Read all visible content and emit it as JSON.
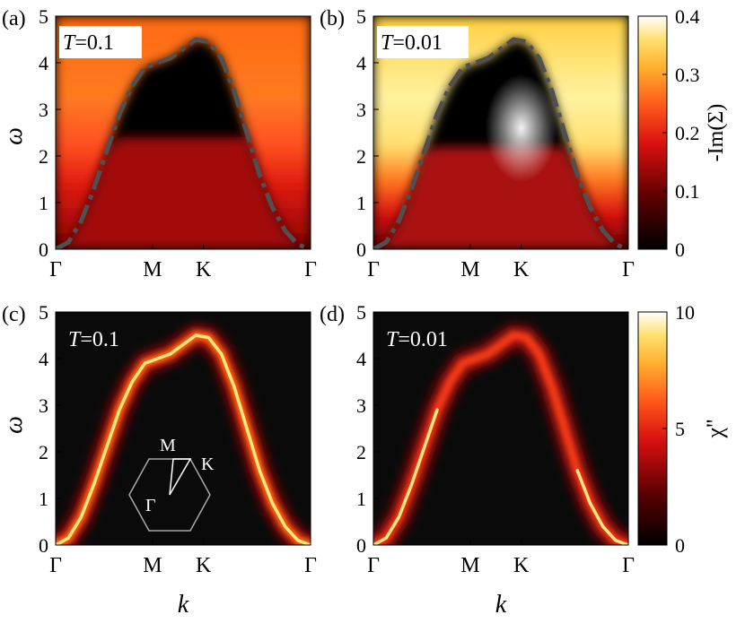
{
  "figure": {
    "colorbars": [
      {
        "label": "-Im(Σ)",
        "ticks": [
          "0",
          "0.1",
          "0.2",
          "0.3",
          "0.4"
        ],
        "tick_values": [
          0,
          0.1,
          0.2,
          0.3,
          0.4
        ],
        "range": [
          0,
          0.4
        ]
      },
      {
        "label": "χ''",
        "ticks": [
          "0",
          "5",
          "10"
        ],
        "tick_values": [
          0,
          5,
          10
        ],
        "range": [
          0,
          10
        ]
      }
    ],
    "inset": {
      "labels": {
        "gamma": "Γ",
        "m": "M",
        "k": "K"
      }
    }
  },
  "chart_data": [
    {
      "type": "heatmap",
      "panel_label": "(a)",
      "temperature_label": "T=0.1",
      "t_symbol": "T",
      "t_value": "=0.1",
      "xlabel": "",
      "ylabel": "ω",
      "ylim": [
        0,
        5
      ],
      "x_tick_labels": [
        "Γ",
        "M",
        "K",
        "Γ"
      ],
      "y_ticks": [
        "0",
        "1",
        "2",
        "3",
        "4",
        "5"
      ],
      "colorbar": 0,
      "overlay": "magnon dispersion (dashed)"
    },
    {
      "type": "heatmap",
      "panel_label": "(b)",
      "temperature_label": "T=0.01",
      "t_symbol": "T",
      "t_value": "=0.01",
      "xlabel": "",
      "ylabel": "",
      "ylim": [
        0,
        5
      ],
      "x_tick_labels": [
        "Γ",
        "M",
        "K",
        "Γ"
      ],
      "y_ticks": [
        "0",
        "1",
        "2",
        "3",
        "4",
        "5"
      ],
      "colorbar": 0,
      "overlay": "magnon dispersion (dashed)"
    },
    {
      "type": "heatmap",
      "panel_label": "(c)",
      "temperature_label": "T=0.1",
      "t_symbol": "T",
      "t_value": "=0.1",
      "xlabel": "k",
      "ylabel": "ω",
      "ylim": [
        0,
        5
      ],
      "x_tick_labels": [
        "Γ",
        "M",
        "K",
        "Γ"
      ],
      "y_ticks": [
        "0",
        "1",
        "2",
        "3",
        "4",
        "5"
      ],
      "colorbar": 1
    },
    {
      "type": "heatmap",
      "panel_label": "(d)",
      "temperature_label": "T=0.01",
      "t_symbol": "T",
      "t_value": "=0.01",
      "xlabel": "k",
      "ylabel": "",
      "ylim": [
        0,
        5
      ],
      "x_tick_labels": [
        "Γ",
        "M",
        "K",
        "Γ"
      ],
      "y_ticks": [
        "0",
        "1",
        "2",
        "3",
        "4",
        "5"
      ],
      "colorbar": 1
    }
  ],
  "dispersion": {
    "k": [
      0,
      0.05,
      0.1,
      0.15,
      0.2,
      0.25,
      0.3,
      0.35,
      0.4,
      0.45,
      0.5,
      0.55,
      0.6,
      0.65,
      0.7,
      0.75,
      0.8,
      0.85,
      0.9,
      0.95,
      1.0
    ],
    "omega": [
      0,
      0.15,
      0.6,
      1.3,
      2.1,
      2.9,
      3.5,
      3.9,
      4.0,
      4.1,
      4.3,
      4.5,
      4.45,
      4.1,
      3.4,
      2.5,
      1.6,
      0.9,
      0.4,
      0.1,
      0
    ],
    "k_points": {
      "Γ": 0,
      "M": 0.38,
      "K": 0.58,
      "Γ2": 1.0
    }
  }
}
